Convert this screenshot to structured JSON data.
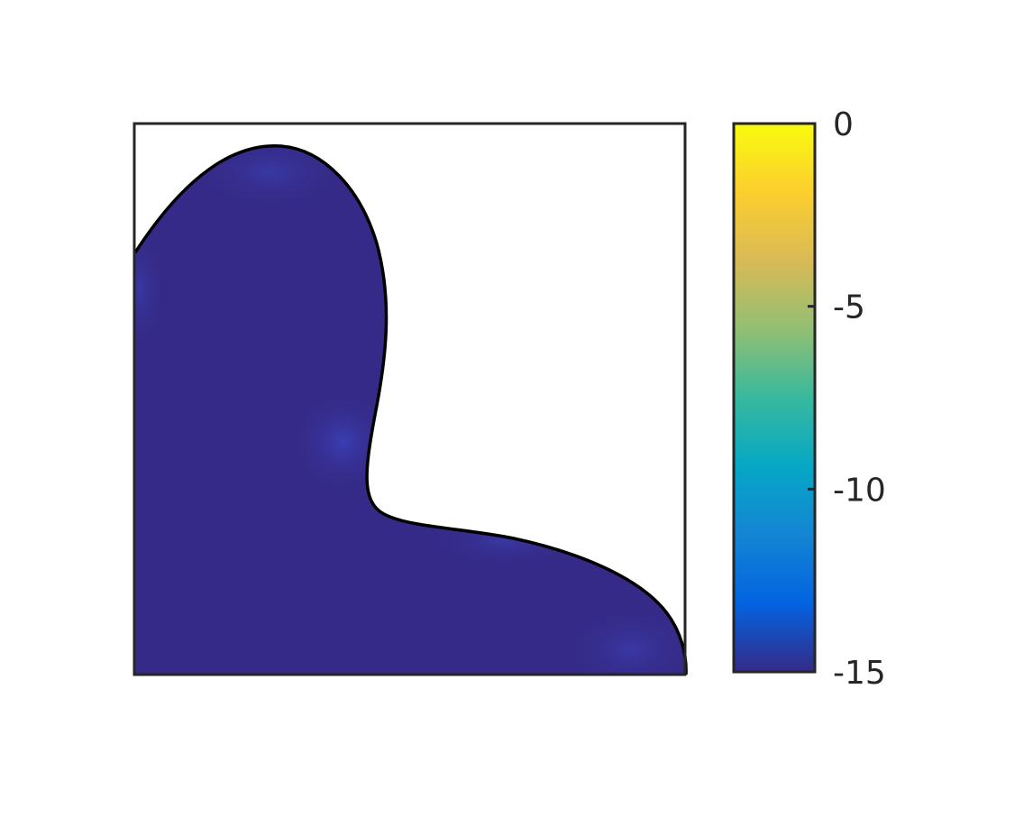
{
  "chart_data": {
    "type": "heatmap",
    "title": "",
    "xlabel": "",
    "ylabel": "",
    "colorbar": {
      "range": [
        -15,
        0
      ],
      "ticks": [
        0,
        -5,
        -10,
        -15
      ],
      "tick_labels": [
        "0",
        "-5",
        "-10",
        "-15"
      ],
      "colormap": "parula",
      "colormap_stops": [
        "#352a87",
        "#0363e1",
        "#1485d4",
        "#06a7c6",
        "#38b99e",
        "#92bf73",
        "#d9ba56",
        "#fcce2e",
        "#f9fb0e"
      ]
    },
    "field": {
      "description_value": -15,
      "fill_color": "#352a87",
      "boundary_color": "#000000"
    },
    "grid": false,
    "x_ticks_visible": false,
    "y_ticks_visible": false
  }
}
